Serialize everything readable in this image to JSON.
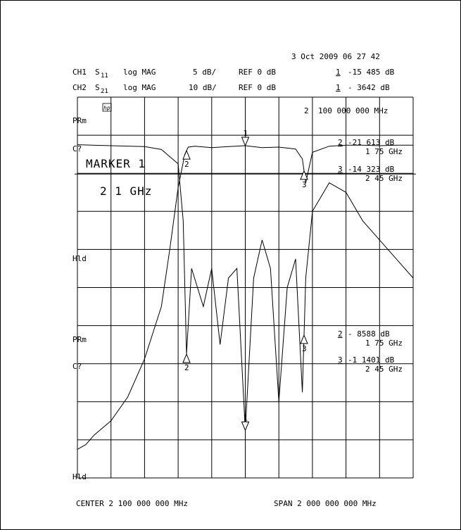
{
  "header": {
    "date_time": "3 Oct 2009  06 27 42",
    "ch1": {
      "label": "CH1",
      "param": "S",
      "param_sub": "11",
      "format": "log MAG",
      "scale": "5 dB/",
      "ref": "REF 0 dB",
      "marker_num": "1",
      "marker_value": "-15 485 dB"
    },
    "ch2": {
      "label": "CH2",
      "param": "S",
      "param_sub": "21",
      "format": "log MAG",
      "scale": "10 dB/",
      "ref": "REF 0 dB",
      "marker_num": "1",
      "marker_value": "- 3642  dB"
    }
  },
  "side_labels": {
    "prm_top": "PRm",
    "c_top": "C?",
    "hld_mid": "Hld",
    "prm_bottom": "PRm",
    "c_bottom": "C?",
    "hld_bottom": "Hld"
  },
  "grid": {
    "hp_logo": "hp",
    "marker_freq": "2",
    "marker_freq_value": "100 000 000 MHz"
  },
  "annotations": {
    "marker_title": "MARKER 1",
    "marker_value": "2  1  GHz"
  },
  "marker_table_s11": [
    {
      "num": "2",
      "value": "-21 613 dB",
      "freq": "1 75 GHz"
    },
    {
      "num": "3",
      "value": "-14 323 dB",
      "freq": "2 45 GHz"
    }
  ],
  "marker_table_s21": [
    {
      "num": "2",
      "value": "-  8588  dB",
      "freq": "1 75 GHz"
    },
    {
      "num": "3",
      "value": "-1 1401 dB",
      "freq": "2 45 GHz"
    }
  ],
  "footer": {
    "center": "CENTER 2 100 000 000 MHz",
    "span": "SPAN 2 000 000 000 MHz"
  },
  "chart_data": {
    "type": "line",
    "xlim": [
      1.1,
      3.1
    ],
    "x_unit": "GHz",
    "grid": true,
    "series": [
      {
        "name": "S21",
        "ylim": [
          -70,
          10
        ],
        "x": [
          1.1,
          1.15,
          1.2,
          1.3,
          1.4,
          1.5,
          1.6,
          1.65,
          1.7,
          1.74,
          1.76,
          1.8,
          1.9,
          2.0,
          2.1,
          2.2,
          2.3,
          2.4,
          2.44,
          2.46,
          2.5,
          2.6,
          2.7,
          2.8,
          2.9,
          3.0,
          3.1
        ],
        "y": [
          -64,
          -63,
          -61,
          -58,
          -53,
          -45,
          -34,
          -22,
          -9,
          -2,
          -0.5,
          -0.3,
          -0.6,
          -0.4,
          -0.2,
          -0.6,
          -0.5,
          -0.9,
          -3,
          -8,
          -1.6,
          -0.3,
          -0.1,
          -0.1,
          -0.2,
          -0.1,
          -0.1
        ]
      },
      {
        "name": "S11",
        "ylim": [
          -35,
          5
        ],
        "x": [
          1.1,
          1.3,
          1.5,
          1.6,
          1.7,
          1.73,
          1.75,
          1.78,
          1.85,
          1.9,
          1.95,
          2.0,
          2.05,
          2.1,
          2.15,
          2.2,
          2.25,
          2.3,
          2.35,
          2.4,
          2.44,
          2.46,
          2.5,
          2.6,
          2.7,
          2.8,
          2.9,
          3.0,
          3.1
        ],
        "y": [
          0,
          -0.1,
          -0.2,
          -0.5,
          -2,
          -8,
          -22,
          -13,
          -17,
          -13,
          -21,
          -14,
          -13,
          -30,
          -14,
          -10,
          -13,
          -27,
          -15,
          -12,
          -26,
          -14,
          -7,
          -4,
          -5,
          -8,
          -10,
          -12,
          -14
        ]
      }
    ],
    "markers": [
      {
        "id": "1",
        "x": 2.1
      },
      {
        "id": "2",
        "x": 1.75
      },
      {
        "id": "3",
        "x": 2.45
      }
    ]
  }
}
